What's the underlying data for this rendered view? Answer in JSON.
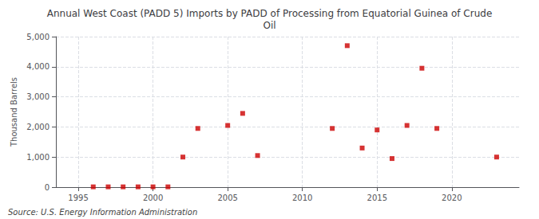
{
  "chart_data": {
    "type": "scatter",
    "title": "Annual West Coast (PADD 5) Imports by PADD of Processing from Equatorial Guinea of Crude\nOil",
    "ylabel": "Thousand Barrels",
    "annotations": [
      "Source: U.S. Energy Information Administration"
    ],
    "x": [
      1996,
      1997,
      1998,
      1999,
      2000,
      2001,
      2002,
      2003,
      2005,
      2006,
      2007,
      2012,
      2013,
      2014,
      2015,
      2016,
      2017,
      2018,
      2019,
      2023
    ],
    "values": [
      10,
      10,
      10,
      10,
      10,
      10,
      1000,
      1950,
      2050,
      2450,
      1050,
      1950,
      4700,
      1300,
      1900,
      950,
      2050,
      3950,
      1950,
      1000
    ],
    "color": "#cc0000",
    "marker": "square",
    "xlim": [
      1993.5,
      2024.5
    ],
    "xticks": [
      1995,
      2000,
      2005,
      2010,
      2015,
      2020
    ],
    "ylim": [
      0,
      5000
    ],
    "yticks": [
      0,
      {
        "value": 1000,
        "label": "1,000"
      },
      {
        "value": 2000,
        "label": "2,000"
      },
      {
        "value": 3000,
        "label": "3,000"
      },
      {
        "value": 4000,
        "label": "4,000"
      },
      {
        "value": 5000,
        "label": "5,000"
      }
    ],
    "grid": true
  }
}
